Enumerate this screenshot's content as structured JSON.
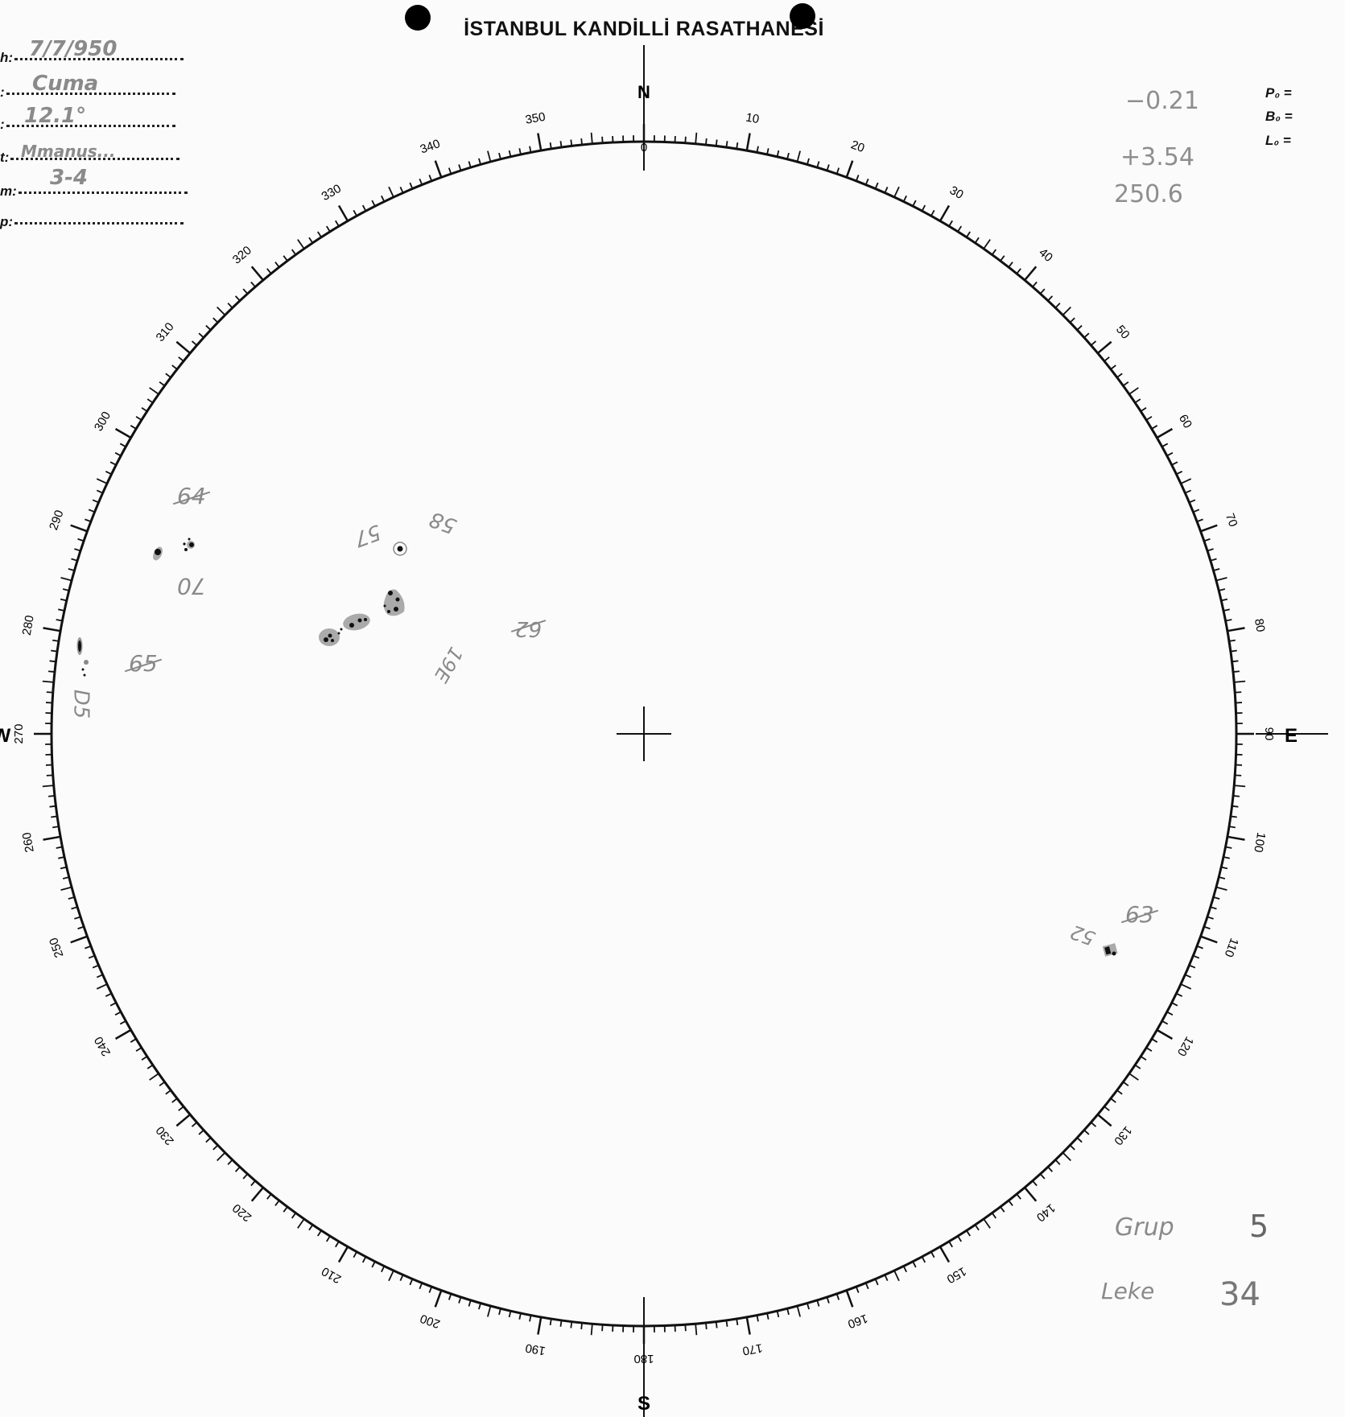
{
  "header": {
    "title": "İSTANBUL KANDİLLİ RASATHANESİ"
  },
  "form": [
    {
      "label": "h:",
      "value": "7/7/950"
    },
    {
      "label": ":",
      "value": "Cuma"
    },
    {
      "label": ":",
      "value": "12.1°"
    },
    {
      "label": "t:",
      "value": "Mmanus..."
    },
    {
      "label": "m:",
      "value": "3-4"
    },
    {
      "label": "p:",
      "value": ""
    }
  ],
  "parameters": {
    "p0_label": "P₀ =",
    "p0_value": "−0.21",
    "b0_label": "B₀ =",
    "b0_value": "+3.54",
    "l0_label": "L₀ =",
    "l0_value": "250.6"
  },
  "compass": {
    "north": "N",
    "east": "E",
    "south": "S",
    "west": "W"
  },
  "scale_labels": [
    "0",
    "10",
    "20",
    "30",
    "40",
    "50",
    "60",
    "70",
    "80",
    "90",
    "100",
    "110",
    "120",
    "130",
    "140",
    "150",
    "160",
    "170",
    "180",
    "190",
    "200",
    "210",
    "220",
    "230",
    "240",
    "250",
    "260",
    "270",
    "280",
    "290",
    "300",
    "310",
    "320",
    "330",
    "340",
    "350"
  ],
  "group_labels": [
    {
      "text": "64",
      "struck": true
    },
    {
      "text": "70",
      "struck": false
    },
    {
      "text": "65",
      "struck": true
    },
    {
      "text": "D5",
      "struck": false
    },
    {
      "text": "57",
      "struck": false
    },
    {
      "text": "58",
      "struck": false
    },
    {
      "text": "62",
      "struck": true
    },
    {
      "text": "19E",
      "struck": false
    },
    {
      "text": "52",
      "struck": false
    },
    {
      "text": "63",
      "struck": true
    }
  ],
  "summary": {
    "group_label": "Grup",
    "group_count": "5",
    "spot_label": "Leke",
    "spot_count": "34"
  },
  "colors": {
    "ink": "#111111",
    "pencil": "#8a8a8a",
    "penumbra": "#9a9a9a"
  }
}
